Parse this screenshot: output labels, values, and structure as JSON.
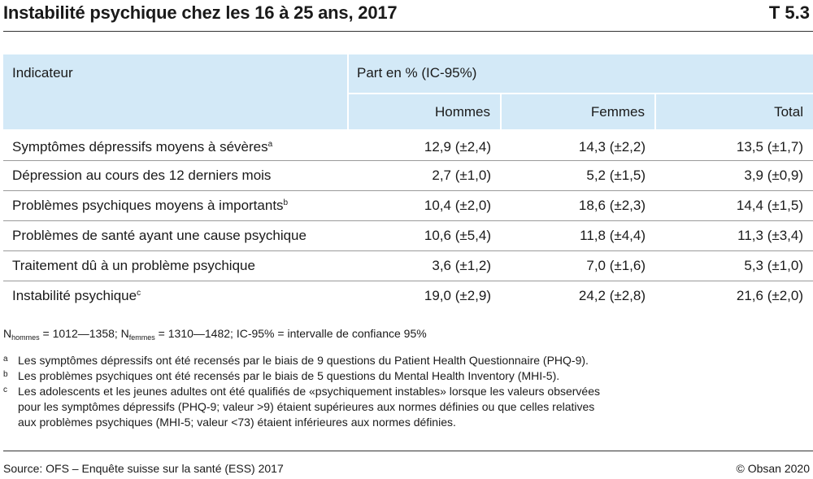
{
  "header": {
    "title": "Instabilité psychique chez les 16 à 25 ans, 2017",
    "table_id": "T 5.3"
  },
  "table": {
    "col_indicator": "Indicateur",
    "col_group": "Part en % (IC-95%)",
    "cols": [
      "Hommes",
      "Femmes",
      "Total"
    ],
    "rows": [
      {
        "label": "Symptômes dépressifs moyens à sévères",
        "sup": "a",
        "values": [
          "12,9 (±2,4)",
          "14,3 (±2,2)",
          "13,5 (±1,7)"
        ]
      },
      {
        "label": "Dépression au cours des 12 derniers mois",
        "sup": "",
        "values": [
          "2,7 (±1,0)",
          "5,2 (±1,5)",
          "3,9 (±0,9)"
        ]
      },
      {
        "label": "Problèmes psychiques moyens à importants",
        "sup": "b",
        "values": [
          "10,4 (±2,0)",
          "18,6 (±2,3)",
          "14,4 (±1,5)"
        ]
      },
      {
        "label": "Problèmes de santé ayant une cause psychique",
        "sup": "",
        "values": [
          "10,6 (±5,4)",
          "11,8 (±4,4)",
          "11,3 (±3,4)"
        ]
      },
      {
        "label": "Traitement dû à un problème psychique",
        "sup": "",
        "values": [
          "3,6 (±1,2)",
          "7,0 (±1,6)",
          "5,3 (±1,0)"
        ]
      },
      {
        "label": "Instabilité psychique",
        "sup": "c",
        "values": [
          "19,0 (±2,9)",
          "24,2 (±2,8)",
          "21,6 (±2,0)"
        ]
      }
    ]
  },
  "notes": {
    "n_prefix": "N",
    "n_sub_hommes": "hommes",
    "n_hommes_range": " = 1012—1358; N",
    "n_sub_femmes": "femmes",
    "n_rest": " = 1310—1482; IC-95% = intervalle de confiance 95%",
    "footnotes": [
      {
        "mark": "a",
        "text": "Les symptômes dépressifs ont été recensés par le biais de 9 questions du Patient Health Questionnaire (PHQ-9)."
      },
      {
        "mark": "b",
        "text": "Les problèmes psychiques ont été recensés par le biais de 5 questions du Mental Health Inventory (MHI-5)."
      },
      {
        "mark": "c",
        "line1": "Les adolescents et les jeunes adultes ont été qualifiés de «psychiquement instables» lorsque les valeurs observées",
        "line2": "pour les symptômes dépressifs (PHQ-9; valeur >9) étaient supérieures aux normes définies ou que celles relatives",
        "line3": "aux problèmes psychiques (MHI-5; valeur <73) étaient inférieures aux normes définies."
      }
    ]
  },
  "footer": {
    "source": "Source: OFS – Enquête suisse sur la santé (ESS) 2017",
    "copyright": "© Obsan 2020"
  }
}
